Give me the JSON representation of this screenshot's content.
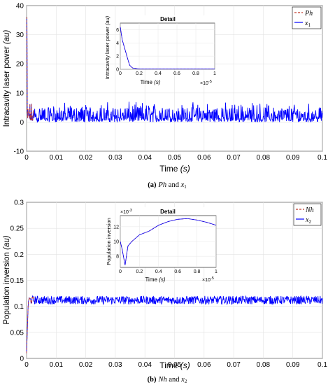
{
  "chart_data": [
    {
      "type": "line",
      "caption_tag": "(a)",
      "caption_text": "Ph and x1",
      "xlabel_main": "Time",
      "xlabel_unit": "(s)",
      "ylabel_main": "Intracavity laser power",
      "ylabel_unit": "(au)",
      "xlim": [
        0,
        0.1
      ],
      "ylim": [
        -10,
        40
      ],
      "x_ticks": [
        "0",
        "0.01",
        "0.02",
        "0.03",
        "0.04",
        "0.05",
        "0.06",
        "0.07",
        "0.08",
        "0.09",
        "0.1"
      ],
      "y_ticks": [
        "-10",
        "0",
        "10",
        "20",
        "30",
        "40"
      ],
      "grid": true,
      "legend_position": "top-right",
      "series": [
        {
          "name": "Ph",
          "color": "#c0392b",
          "style": "dashed",
          "values_description_baseline": 1.5,
          "noise_range": [
            0,
            7
          ]
        },
        {
          "name": "x1",
          "color": "#0000ff",
          "style": "solid",
          "values_description_baseline": 1.5,
          "noise_range": [
            0,
            7
          ]
        }
      ],
      "inset": {
        "title": "Detail",
        "xlabel_main": "Time",
        "xlabel_unit": "(s)",
        "ylabel_main": "Intracavity laser power",
        "ylabel_unit": "(au)",
        "x_ticks": [
          "0",
          "0.2",
          "0.4",
          "0.6",
          "0.8",
          "1"
        ],
        "y_ticks": [
          "0",
          "2",
          "4",
          "6"
        ],
        "x_exponent": "×10",
        "x_exponent_power": "-5",
        "xlim": [
          0,
          1e-05
        ],
        "ylim": [
          0,
          7
        ],
        "x": [
          0,
          2e-07,
          5e-07,
          8e-07,
          1e-06,
          1.3e-06,
          2e-06,
          4e-06,
          6e-06,
          8e-06,
          1e-05
        ],
        "y": [
          6.4,
          4.5,
          3.0,
          1.5,
          0.6,
          0.2,
          0.05,
          0.05,
          0.05,
          0.05,
          0.05
        ]
      }
    },
    {
      "type": "line",
      "caption_tag": "(b)",
      "caption_text": "Nh and x2",
      "xlabel_main": "Time",
      "xlabel_unit": "(s)",
      "ylabel_main": "Population inversion",
      "ylabel_unit": "(au)",
      "xlim": [
        0,
        0.1
      ],
      "ylim": [
        0,
        0.3
      ],
      "x_ticks": [
        "0",
        "0.01",
        "0.02",
        "0.03",
        "0.04",
        "0.05",
        "0.06",
        "0.07",
        "0.08",
        "0.09",
        "0.1"
      ],
      "y_ticks": [
        "0",
        "0.05",
        "0.1",
        "0.15",
        "0.2",
        "0.25",
        "0.3"
      ],
      "grid": true,
      "legend_position": "top-right",
      "series": [
        {
          "name": "Nh",
          "color": "#c0392b",
          "style": "dashed",
          "values_description_baseline": 0.113,
          "noise_range": [
            0.104,
            0.12
          ]
        },
        {
          "name": "x2",
          "color": "#0000ff",
          "style": "solid",
          "values_description_baseline": 0.113,
          "noise_range": [
            0.104,
            0.12
          ]
        }
      ],
      "inset": {
        "title": "Detail",
        "xlabel_main": "Time",
        "xlabel_unit": "(s)",
        "ylabel_main": "Population inversion",
        "ylabel_unit": "",
        "x_ticks": [
          "0",
          "0.2",
          "0.4",
          "0.6",
          "0.8",
          "1"
        ],
        "y_ticks": [
          "8",
          "10",
          "12"
        ],
        "x_exponent": "×10",
        "x_exponent_power": "-5",
        "y_exponent": "×10",
        "y_exponent_power": "-3",
        "xlim": [
          0,
          1e-05
        ],
        "ylim": [
          6.5,
          13.5
        ],
        "x": [
          0,
          2e-07,
          5e-07,
          8e-07,
          1.2e-06,
          2e-06,
          3e-06,
          4e-06,
          5e-06,
          6e-06,
          7e-06,
          8e-06,
          9e-06,
          1e-05
        ],
        "y": [
          10,
          8.9,
          6.8,
          9.4,
          10.0,
          10.9,
          11.4,
          12.2,
          12.7,
          13.0,
          13.1,
          12.9,
          12.6,
          12.2
        ]
      }
    }
  ]
}
